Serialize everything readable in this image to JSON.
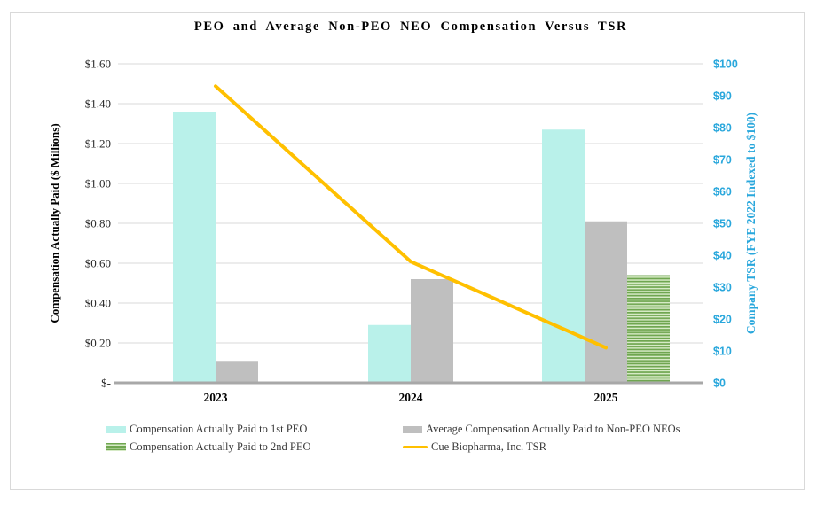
{
  "figure": {
    "title": "PEO and Average Non-PEO NEO Compensation Versus TSR",
    "left_axis_title": "Compensation Actually Paid ($ Millions)",
    "right_axis_title": "Company TSR (FYE 2022 Indexed to $100)"
  },
  "colors": {
    "peo1_bar": "#B9F1EA",
    "neo_bar": "#BFBFBF",
    "peo2_stripe_dark": "#6FA650",
    "peo2_stripe_light": "#D6EAC6",
    "tsr_line": "#FFC000",
    "right_axis_text": "#29A7DC",
    "gridline": "#D9D9D9",
    "axis_line": "#A8A8A8",
    "tick_text": "#262626"
  },
  "chart_data": {
    "type": "bar",
    "subtype": "grouped bars with secondary-axis line overlay",
    "title": "PEO and Average Non-PEO NEO Compensation Versus TSR",
    "categories": [
      "2023",
      "2024",
      "2025"
    ],
    "series": [
      {
        "name": "Compensation Actually Paid to 1st PEO",
        "type": "bar",
        "axis": "left",
        "color_key": "peo1_bar",
        "values": [
          1.36,
          0.29,
          1.27
        ]
      },
      {
        "name": "Average Compensation Actually Paid to Non-PEO NEOs",
        "type": "bar",
        "axis": "left",
        "color_key": "neo_bar",
        "values": [
          0.11,
          0.52,
          0.81
        ]
      },
      {
        "name": "Compensation Actually Paid to 2nd PEO",
        "type": "bar",
        "axis": "left",
        "color_key": "peo2_stripes",
        "pattern": "horizontal-stripes",
        "values": [
          null,
          null,
          0.54
        ]
      },
      {
        "name": "Cue Biopharma, Inc. TSR",
        "type": "line",
        "axis": "right",
        "color_key": "tsr_line",
        "values": [
          93,
          38,
          11
        ]
      }
    ],
    "left_axis": {
      "label": "Compensation Actually Paid ($ Millions)",
      "min": 0,
      "max": 1.6,
      "step": 0.2,
      "tick_labels": [
        "$-",
        "$0.20",
        "$0.40",
        "$0.60",
        "$0.80",
        "$1.00",
        "$1.20",
        "$1.40",
        "$1.60"
      ]
    },
    "right_axis": {
      "label": "Company TSR (FYE 2022 Indexed to $100)",
      "min": 0,
      "max": 100,
      "step": 10,
      "tick_labels": [
        "$0",
        "$10",
        "$20",
        "$30",
        "$40",
        "$50",
        "$60",
        "$70",
        "$80",
        "$90",
        "$100"
      ]
    },
    "grid": true,
    "legend_position": "bottom"
  }
}
